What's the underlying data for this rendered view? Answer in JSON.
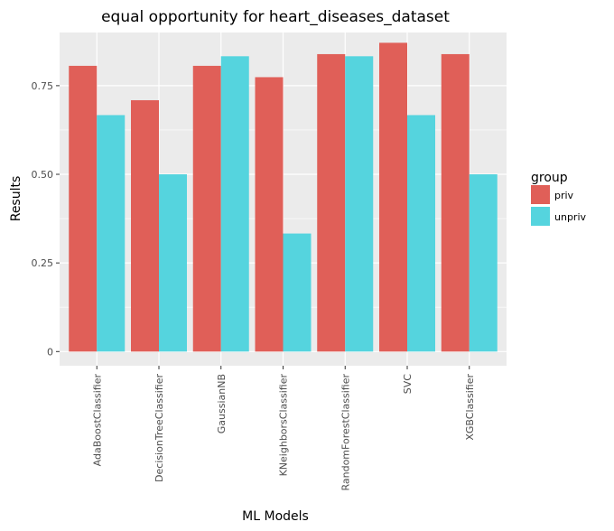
{
  "chart_data": {
    "type": "bar",
    "title": "equal opportunity for heart_diseases_dataset",
    "xlabel": "ML Models",
    "ylabel": "Results",
    "ylim": [
      -0.04,
      0.9
    ],
    "yticks": [
      0,
      0.25,
      0.5,
      0.75
    ],
    "ytick_labels": [
      "0",
      "0.25",
      "0.50",
      "0.75"
    ],
    "categories": [
      "AdaBoostClassifier",
      "DecisionTreeClassifier",
      "GaussianNB",
      "KNeighborsClassifier",
      "RandomForestClassifier",
      "SVC",
      "XGBClassifier"
    ],
    "series": [
      {
        "name": "priv",
        "color": "#E05F58",
        "values": [
          0.806,
          0.709,
          0.806,
          0.774,
          0.839,
          0.871,
          0.839
        ]
      },
      {
        "name": "unpriv",
        "color": "#55D4DE",
        "values": [
          0.667,
          0.5,
          0.833,
          0.333,
          0.833,
          0.667,
          0.5
        ]
      }
    ],
    "legend": {
      "title": "group",
      "position": "right"
    },
    "grid": true,
    "panel_background": "#EBEBEB"
  }
}
